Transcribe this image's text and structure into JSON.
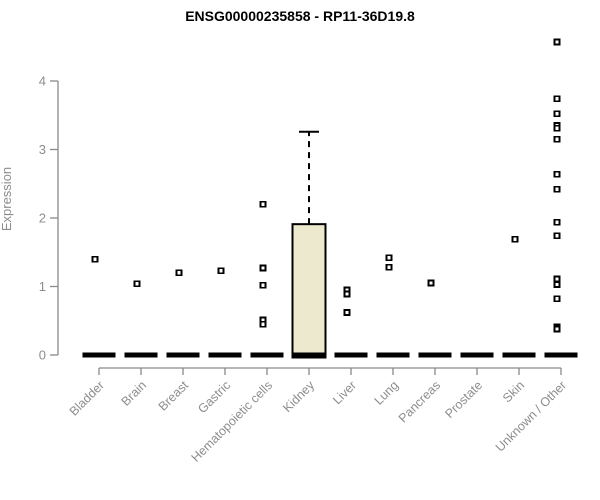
{
  "page": {
    "title": "ENSG00000235858 - RP11-36D19.8"
  },
  "chart_data": {
    "type": "boxplot",
    "title": "ENSG00000235858 - RP11-36D19.8",
    "xlabel": "",
    "ylabel": "Expression",
    "ylim": [
      0,
      4
    ],
    "yticks": [
      0,
      1,
      2,
      3,
      4
    ],
    "grid": false,
    "legend": "none",
    "categories": [
      "Bladder",
      "Brain",
      "Breast",
      "Gastric",
      "Hematopoietic cells",
      "Kidney",
      "Liver",
      "Lung",
      "Pancreas",
      "Prostate",
      "Skin",
      "Unknown / Other"
    ],
    "series": [
      {
        "category": "Bladder",
        "median": 0,
        "points": [
          1.4
        ]
      },
      {
        "category": "Brain",
        "median": 0,
        "points": [
          1.04
        ]
      },
      {
        "category": "Breast",
        "median": 0,
        "points": [
          1.2
        ]
      },
      {
        "category": "Gastric",
        "median": 0,
        "points": [
          1.23
        ]
      },
      {
        "category": "Hematopoietic cells",
        "median": 0,
        "points": [
          2.2,
          1.27,
          1.02,
          0.51,
          0.45
        ]
      },
      {
        "category": "Kidney",
        "median": 0,
        "box": {
          "q1": 0,
          "q3": 1.91,
          "whisker_low": 0,
          "whisker_high": 3.26
        },
        "points": []
      },
      {
        "category": "Liver",
        "median": 0,
        "points": [
          0.95,
          0.89,
          0.62
        ]
      },
      {
        "category": "Lung",
        "median": 0,
        "points": [
          1.42,
          1.28
        ]
      },
      {
        "category": "Pancreas",
        "median": 0,
        "points": [
          1.05
        ]
      },
      {
        "category": "Prostate",
        "median": 0,
        "points": []
      },
      {
        "category": "Skin",
        "median": 0,
        "points": [
          1.69
        ]
      },
      {
        "category": "Unknown / Other",
        "median": 0,
        "points": [
          4.57,
          3.74,
          3.52,
          3.35,
          3.31,
          3.15,
          2.64,
          2.42,
          1.94,
          1.74,
          1.11,
          1.03,
          0.82,
          0.41,
          0.38
        ]
      }
    ],
    "colors": {
      "box_fill": "#EDE9CE",
      "box_stroke": "#000000",
      "median_color": "#000000",
      "point_stroke": "#000000",
      "point_fill": "#FFFFFF",
      "axis_color": "#8a8a8a",
      "tick_label_color": "#8d8d8d",
      "title_color": "#000000"
    }
  }
}
